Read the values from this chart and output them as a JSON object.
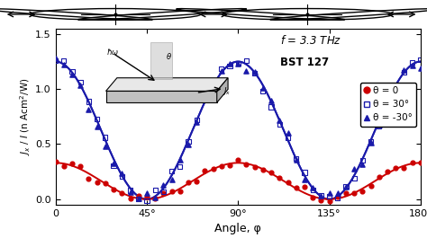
{
  "xlabel": "Angle, φ",
  "ylabel": "$J_x$ / $I$ (n Acm$^2$/W)",
  "xlim": [
    0,
    180
  ],
  "ylim": [
    -0.05,
    1.55
  ],
  "xtick_labels": [
    "0",
    "45°",
    "90°",
    "135°",
    "180°"
  ],
  "yticks": [
    0.0,
    0.5,
    1.0,
    1.5
  ],
  "freq_label": "$f$ = 3.3 THz",
  "sample_label": "BST 127",
  "legend_entries": [
    "θ = 0",
    "θ = 30°",
    "θ = -30°"
  ],
  "red_color": "#cc0000",
  "blue_color": "#1a1aaa",
  "background_color": "#ffffff",
  "theta0_A": 0.165,
  "theta0_C": 0.165,
  "theta30_A": 0.625,
  "theta30_C": 0.625,
  "thetam30_A": 0.625,
  "thetam30_C": 0.625
}
